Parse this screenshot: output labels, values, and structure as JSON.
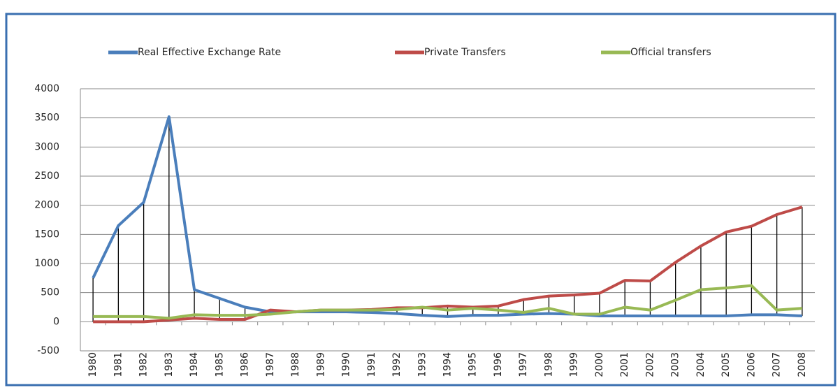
{
  "chart_data": {
    "type": "line",
    "categories": [
      "1980",
      "1981",
      "1982",
      "1983",
      "1984",
      "1985",
      "1986",
      "1987",
      "1988",
      "1989",
      "1990",
      "1991",
      "1992",
      "1993",
      "1994",
      "1995",
      "1996",
      "1997",
      "1998",
      "1999",
      "2000",
      "2001",
      "2002",
      "2003",
      "2004",
      "2005",
      "2006",
      "2007",
      "2008"
    ],
    "series": [
      {
        "name": "Real Effective Exchange Rate",
        "color": "#4a7ebb",
        "values": [
          750,
          1650,
          2050,
          3520,
          550,
          400,
          250,
          170,
          170,
          170,
          170,
          160,
          140,
          110,
          90,
          110,
          110,
          130,
          140,
          130,
          100,
          100,
          100,
          100,
          100,
          100,
          120,
          120,
          100
        ]
      },
      {
        "name": "Private Transfers",
        "color": "#be4b48",
        "values": [
          0,
          0,
          0,
          30,
          60,
          40,
          40,
          200,
          170,
          200,
          200,
          210,
          240,
          240,
          270,
          250,
          270,
          380,
          440,
          460,
          490,
          710,
          700,
          1020,
          1300,
          1540,
          1640,
          1840,
          1970
        ]
      },
      {
        "name": "Official transfers",
        "color": "#98b954",
        "values": [
          90,
          90,
          90,
          60,
          120,
          110,
          110,
          130,
          170,
          200,
          200,
          200,
          210,
          250,
          200,
          230,
          200,
          160,
          230,
          130,
          130,
          250,
          200,
          370,
          550,
          580,
          620,
          200,
          230
        ]
      }
    ],
    "ylim": [
      -500,
      4000
    ],
    "yticks": [
      -500,
      0,
      500,
      1000,
      1500,
      2000,
      2500,
      3000,
      3500,
      4000
    ],
    "grid": true,
    "legend": "top",
    "high_low_lines": true
  }
}
